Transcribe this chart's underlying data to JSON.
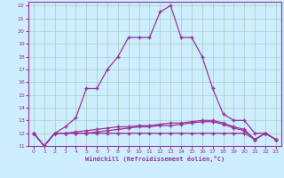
{
  "xlabel": "Windchill (Refroidissement éolien,°C)",
  "bg_color": "#cceeff",
  "grid_color": "#a8ccbb",
  "line_color": "#993399",
  "xlim": [
    -0.5,
    23.5
  ],
  "ylim": [
    11,
    22.3
  ],
  "yticks": [
    11,
    12,
    13,
    14,
    15,
    16,
    17,
    18,
    19,
    20,
    21,
    22
  ],
  "xticks": [
    0,
    1,
    2,
    3,
    4,
    5,
    6,
    7,
    8,
    9,
    10,
    11,
    12,
    13,
    14,
    15,
    16,
    17,
    18,
    19,
    20,
    21,
    22,
    23
  ],
  "hours": [
    0,
    1,
    2,
    3,
    4,
    5,
    6,
    7,
    8,
    9,
    10,
    11,
    12,
    13,
    14,
    15,
    16,
    17,
    18,
    19,
    20,
    21,
    22,
    23
  ],
  "temp": [
    12,
    11,
    12,
    12.5,
    13.2,
    15.5,
    15.5,
    17.0,
    18.0,
    19.5,
    19.5,
    19.5,
    21.5,
    22.0,
    19.5,
    19.5,
    18.0,
    15.5,
    13.5,
    13.0,
    13.0,
    12.0,
    12.0,
    11.5
  ],
  "wc_actual": [
    12,
    11,
    12,
    12.0,
    12.0,
    12.0,
    12.0,
    12.0,
    12.0,
    12.0,
    12.0,
    12.0,
    12.0,
    12.0,
    12.0,
    12.0,
    12.0,
    12.0,
    12.0,
    12.0,
    12.0,
    11.5,
    12.0,
    11.5
  ],
  "wc_feel": [
    12,
    11,
    12,
    12.0,
    12.1,
    12.2,
    12.3,
    12.4,
    12.5,
    12.5,
    12.6,
    12.6,
    12.7,
    12.8,
    12.8,
    12.9,
    13.0,
    13.0,
    12.8,
    12.5,
    12.3,
    11.5,
    12.0,
    11.5
  ],
  "wc_line3": [
    12,
    11,
    12,
    12.0,
    12.0,
    12.0,
    12.1,
    12.2,
    12.3,
    12.4,
    12.5,
    12.5,
    12.6,
    12.6,
    12.7,
    12.8,
    12.9,
    12.9,
    12.7,
    12.4,
    12.2,
    11.5,
    12.0,
    11.5
  ]
}
